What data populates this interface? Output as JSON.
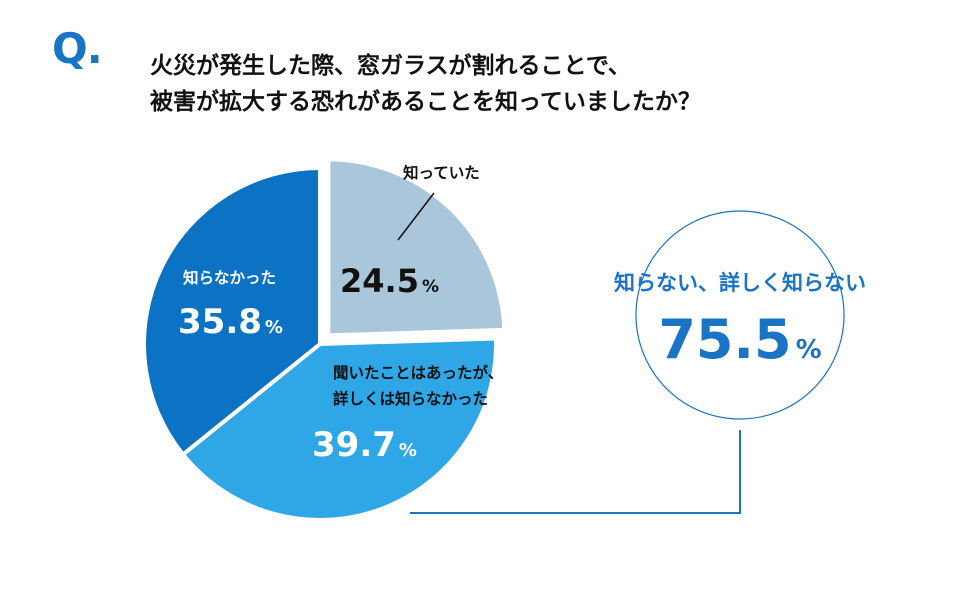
{
  "header": {
    "q_mark": "Q.",
    "question_line1": "火災が発生した際、窓ガラスが割れることで、",
    "question_line2": "被害が拡大する恐れがあることを知っていましたか？"
  },
  "chart_data": {
    "type": "pie",
    "slices": [
      {
        "label": "知っていた",
        "value": 24.5,
        "display": "24.5",
        "unit": "%",
        "color": "#a9c6da",
        "exploded": true
      },
      {
        "label_lines": [
          "聞いたことはあったが、",
          "詳しくは知らなかった"
        ],
        "value": 39.7,
        "display": "39.7",
        "unit": "%",
        "color": "#2fa6e6",
        "exploded": false
      },
      {
        "label": "知らなかった",
        "value": 35.8,
        "display": "35.8",
        "unit": "%",
        "color": "#0c72c4",
        "exploded": false
      }
    ],
    "callout": {
      "label": "知らない、詳しく知らない",
      "value": 75.5,
      "display": "75.5",
      "unit": "%",
      "color": "#1a74c6"
    }
  }
}
